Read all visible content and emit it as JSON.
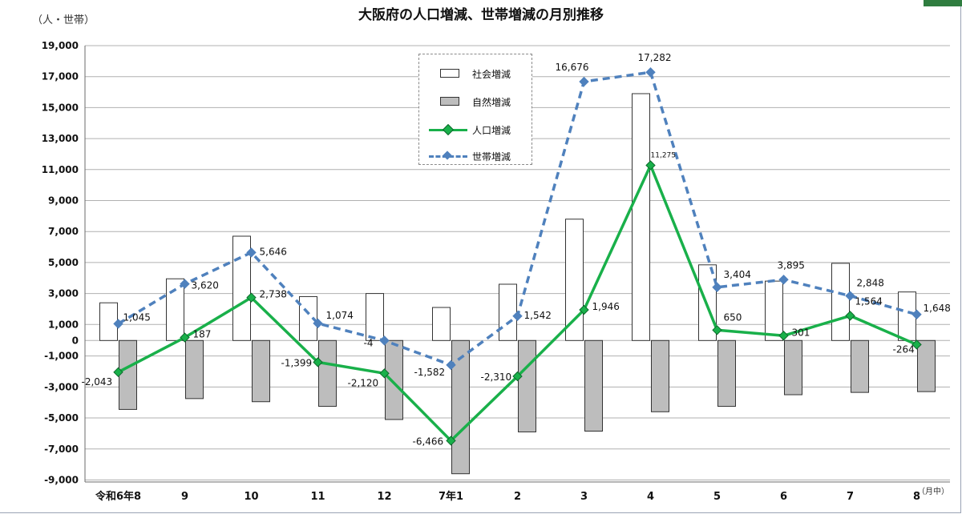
{
  "chart_data": {
    "type": "bar",
    "title": "大阪府の人口増減、世帯増減の月別推移",
    "ylabel": "（人・世帯）",
    "xlabel": "（月中）",
    "ylim": [
      -9000,
      19000
    ],
    "yticks": [
      -9000,
      -7000,
      -5000,
      -3000,
      -1000,
      0,
      1000,
      3000,
      5000,
      7000,
      9000,
      11000,
      13000,
      15000,
      17000,
      19000
    ],
    "ytick_labels": [
      "-9,000",
      "-7,000",
      "-5,000",
      "-3,000",
      "-1,000",
      "0",
      "1,000",
      "3,000",
      "5,000",
      "7,000",
      "9,000",
      "11,000",
      "13,000",
      "15,000",
      "17,000",
      "19,000"
    ],
    "categories": [
      "令和6年8",
      "9",
      "10",
      "11",
      "12",
      "7年1",
      "2",
      "3",
      "4",
      "5",
      "6",
      "7",
      "8"
    ],
    "grid": true,
    "legend_position": "top-center",
    "series": [
      {
        "name": "社会増減",
        "kind": "bar",
        "color": "#ffffff",
        "values": [
          2400,
          3950,
          6700,
          2800,
          3000,
          2100,
          3600,
          7800,
          15900,
          4850,
          3800,
          4950,
          3100
        ]
      },
      {
        "name": "自然増減",
        "kind": "bar",
        "color": "#bdbdbd",
        "values": [
          -4450,
          -3750,
          -3950,
          -4250,
          -5100,
          -8600,
          -5900,
          -5850,
          -4600,
          -4250,
          -3500,
          -3350,
          -3300
        ]
      },
      {
        "name": "人口増減",
        "kind": "line",
        "color": "#19b04a",
        "values": [
          -2043,
          187,
          2738,
          -1399,
          -2120,
          -6466,
          -2310,
          1946,
          11275,
          650,
          301,
          1564,
          -264
        ],
        "labels": [
          "-2,043",
          "187",
          "2,738",
          "-1,399",
          "-2,120",
          "-6,466",
          "-2,310",
          "1,946",
          "11,275",
          "650",
          "301",
          "1,564",
          "-264"
        ]
      },
      {
        "name": "世帯増減",
        "kind": "line-dashed",
        "color": "#4f81bd",
        "values": [
          1045,
          3620,
          5646,
          1074,
          -4,
          -1582,
          1542,
          16676,
          17282,
          3404,
          3895,
          2848,
          1648
        ],
        "labels": [
          "1,045",
          "3,620",
          "5,646",
          "1,074",
          "-4",
          "-1,582",
          "1,542",
          "16,676",
          "17,282",
          "3,404",
          "3,895",
          "2,848",
          "1,648"
        ]
      }
    ]
  },
  "colors": {
    "grid": "#b0b0b0",
    "axis": "#6b6b6b",
    "green_marker_edge": "#0d6b2c"
  }
}
